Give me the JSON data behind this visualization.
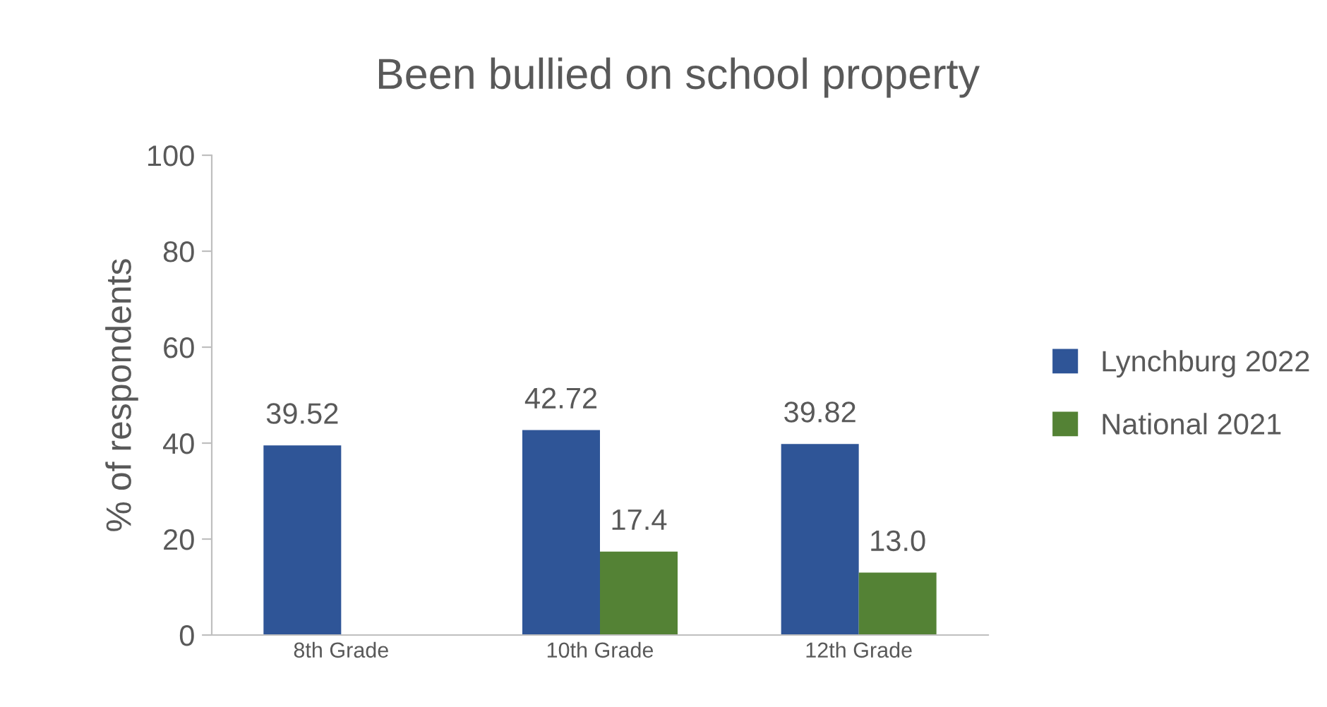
{
  "chart_data": {
    "type": "bar",
    "title": "Been bullied on school property",
    "ylabel": "% of respondents",
    "categories": [
      "8th Grade",
      "10th Grade",
      "12th Grade"
    ],
    "series": [
      {
        "name": "Lynchburg 2022",
        "color": "#2f5597",
        "values": [
          39.52,
          42.72,
          39.82
        ],
        "value_labels": [
          "39.52",
          "42.72",
          "39.82"
        ]
      },
      {
        "name": "National 2021",
        "color": "#548235",
        "values": [
          null,
          17.4,
          13.0
        ],
        "value_labels": [
          null,
          "17.4",
          "13.0"
        ]
      }
    ],
    "ylim": [
      0,
      100
    ],
    "yticks": [
      0,
      20,
      40,
      60,
      80,
      100
    ],
    "grid": false,
    "legend": "right"
  }
}
